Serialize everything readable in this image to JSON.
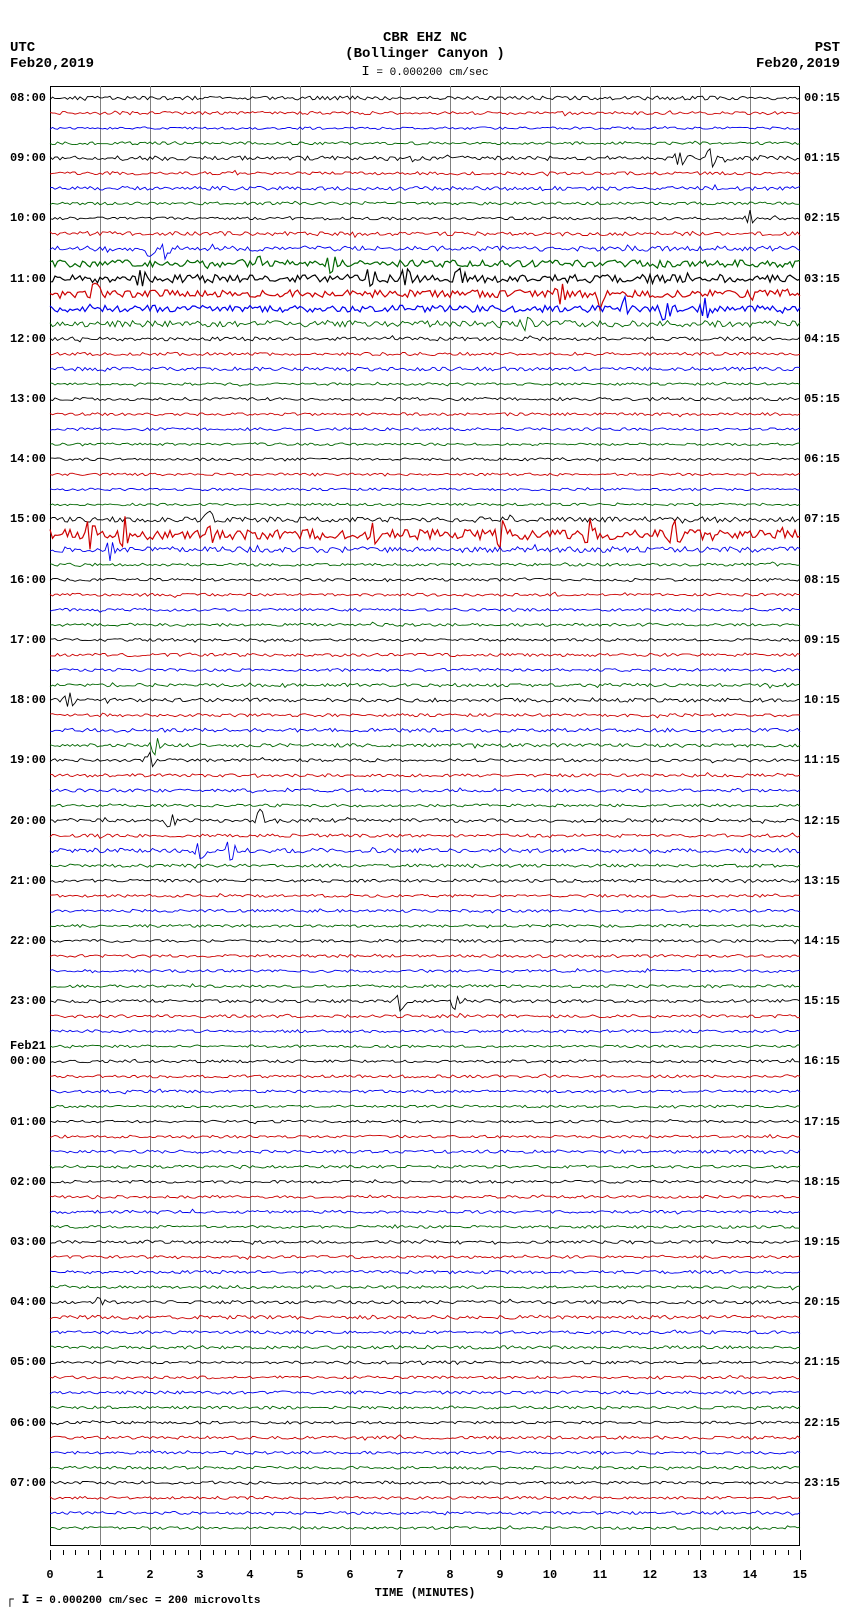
{
  "header": {
    "station": "CBR EHZ NC",
    "location": "(Bollinger Canyon )",
    "scale_text": "= 0.000200 cm/sec",
    "tz_left": "UTC",
    "date_left": "Feb20,2019",
    "tz_right": "PST",
    "date_right": "Feb20,2019"
  },
  "footer": {
    "scale_text": "= 0.000200 cm/sec =    200 microvolts"
  },
  "plot": {
    "x_minutes": [
      0,
      1,
      2,
      3,
      4,
      5,
      6,
      7,
      8,
      9,
      10,
      11,
      12,
      13,
      14,
      15
    ],
    "x_minor_per_step": 4,
    "x_title": "TIME (MINUTES)",
    "trace_colors": [
      "#000000",
      "#cc0000",
      "#0000ee",
      "#006600"
    ],
    "grid_color": "#808080",
    "background": "#ffffff",
    "n_traces": 96,
    "n_hours": 24,
    "utc_start_hour": 8,
    "pst_start_hour": 0,
    "pst_start_min": 15,
    "utc_midnight_label": "Feb21",
    "left_labels": [
      {
        "i": 0,
        "t": "08:00"
      },
      {
        "i": 4,
        "t": "09:00"
      },
      {
        "i": 8,
        "t": "10:00"
      },
      {
        "i": 12,
        "t": "11:00"
      },
      {
        "i": 16,
        "t": "12:00"
      },
      {
        "i": 20,
        "t": "13:00"
      },
      {
        "i": 24,
        "t": "14:00"
      },
      {
        "i": 28,
        "t": "15:00"
      },
      {
        "i": 32,
        "t": "16:00"
      },
      {
        "i": 36,
        "t": "17:00"
      },
      {
        "i": 40,
        "t": "18:00"
      },
      {
        "i": 44,
        "t": "19:00"
      },
      {
        "i": 48,
        "t": "20:00"
      },
      {
        "i": 52,
        "t": "21:00"
      },
      {
        "i": 56,
        "t": "22:00"
      },
      {
        "i": 60,
        "t": "23:00"
      },
      {
        "i": 64,
        "t": "00:00"
      },
      {
        "i": 68,
        "t": "01:00"
      },
      {
        "i": 72,
        "t": "02:00"
      },
      {
        "i": 76,
        "t": "03:00"
      },
      {
        "i": 80,
        "t": "04:00"
      },
      {
        "i": 84,
        "t": "05:00"
      },
      {
        "i": 88,
        "t": "06:00"
      },
      {
        "i": 92,
        "t": "07:00"
      }
    ],
    "right_labels": [
      {
        "i": 0,
        "t": "00:15"
      },
      {
        "i": 4,
        "t": "01:15"
      },
      {
        "i": 8,
        "t": "02:15"
      },
      {
        "i": 12,
        "t": "03:15"
      },
      {
        "i": 16,
        "t": "04:15"
      },
      {
        "i": 20,
        "t": "05:15"
      },
      {
        "i": 24,
        "t": "06:15"
      },
      {
        "i": 28,
        "t": "07:15"
      },
      {
        "i": 32,
        "t": "08:15"
      },
      {
        "i": 36,
        "t": "09:15"
      },
      {
        "i": 40,
        "t": "10:15"
      },
      {
        "i": 44,
        "t": "11:15"
      },
      {
        "i": 48,
        "t": "12:15"
      },
      {
        "i": 52,
        "t": "13:15"
      },
      {
        "i": 56,
        "t": "14:15"
      },
      {
        "i": 60,
        "t": "15:15"
      },
      {
        "i": 64,
        "t": "16:15"
      },
      {
        "i": 68,
        "t": "17:15"
      },
      {
        "i": 72,
        "t": "18:15"
      },
      {
        "i": 76,
        "t": "19:15"
      },
      {
        "i": 80,
        "t": "20:15"
      },
      {
        "i": 84,
        "t": "21:15"
      },
      {
        "i": 88,
        "t": "22:15"
      },
      {
        "i": 92,
        "t": "23:15"
      }
    ],
    "amplitude_profile": [
      1.2,
      1.0,
      0.8,
      0.9,
      1.4,
      1.0,
      1.2,
      0.9,
      0.9,
      1.3,
      1.6,
      2.2,
      2.6,
      2.4,
      2.2,
      2.0,
      1.2,
      1.0,
      1.2,
      0.8,
      1.0,
      0.9,
      0.9,
      0.8,
      0.8,
      0.8,
      0.8,
      0.8,
      1.6,
      3.2,
      1.8,
      0.9,
      0.9,
      0.9,
      0.9,
      0.9,
      0.9,
      1.0,
      0.9,
      1.1,
      1.2,
      1.0,
      1.2,
      1.1,
      1.0,
      1.0,
      1.0,
      0.9,
      1.2,
      1.0,
      1.4,
      1.0,
      1.0,
      0.9,
      0.9,
      0.9,
      0.9,
      0.9,
      0.9,
      0.9,
      1.0,
      1.0,
      0.9,
      0.8,
      0.9,
      0.9,
      0.9,
      0.8,
      0.8,
      0.9,
      1.0,
      0.9,
      0.9,
      0.9,
      0.9,
      0.9,
      0.9,
      0.9,
      1.0,
      0.9,
      1.0,
      1.2,
      1.0,
      1.0,
      0.9,
      0.9,
      1.0,
      0.9,
      0.9,
      1.0,
      0.9,
      0.9,
      0.9,
      0.9,
      0.9,
      0.9
    ],
    "spikes": [
      {
        "i": 4,
        "x": 13.2,
        "h": 4
      },
      {
        "i": 4,
        "x": 12.6,
        "h": 3
      },
      {
        "i": 8,
        "x": 14.0,
        "h": 3
      },
      {
        "i": 10,
        "x": 2.0,
        "h": 3
      },
      {
        "i": 10,
        "x": 2.3,
        "h": 4
      },
      {
        "i": 11,
        "x": 4.2,
        "h": 3
      },
      {
        "i": 11,
        "x": 5.6,
        "h": 4
      },
      {
        "i": 12,
        "x": 1.8,
        "h": 5
      },
      {
        "i": 12,
        "x": 6.4,
        "h": 4
      },
      {
        "i": 12,
        "x": 7.1,
        "h": 4
      },
      {
        "i": 12,
        "x": 8.2,
        "h": 3
      },
      {
        "i": 13,
        "x": 0.9,
        "h": 4
      },
      {
        "i": 13,
        "x": 10.2,
        "h": 4
      },
      {
        "i": 13,
        "x": 11.0,
        "h": 5
      },
      {
        "i": 14,
        "x": 11.5,
        "h": 4
      },
      {
        "i": 14,
        "x": 12.3,
        "h": 5
      },
      {
        "i": 14,
        "x": 13.1,
        "h": 4
      },
      {
        "i": 15,
        "x": 9.5,
        "h": 3
      },
      {
        "i": 28,
        "x": 3.2,
        "h": 3
      },
      {
        "i": 29,
        "x": 0.8,
        "h": 5
      },
      {
        "i": 29,
        "x": 1.5,
        "h": 6
      },
      {
        "i": 29,
        "x": 3.2,
        "h": 5
      },
      {
        "i": 29,
        "x": 6.5,
        "h": 4
      },
      {
        "i": 29,
        "x": 9.0,
        "h": 6
      },
      {
        "i": 29,
        "x": 10.8,
        "h": 5
      },
      {
        "i": 29,
        "x": 12.5,
        "h": 5
      },
      {
        "i": 30,
        "x": 1.2,
        "h": 4
      },
      {
        "i": 40,
        "x": 0.4,
        "h": 3
      },
      {
        "i": 43,
        "x": 2.1,
        "h": 4
      },
      {
        "i": 44,
        "x": 2.0,
        "h": 3
      },
      {
        "i": 48,
        "x": 2.4,
        "h": 3
      },
      {
        "i": 48,
        "x": 4.2,
        "h": 4
      },
      {
        "i": 50,
        "x": 3.0,
        "h": 4
      },
      {
        "i": 50,
        "x": 3.6,
        "h": 4
      },
      {
        "i": 60,
        "x": 7.0,
        "h": 4
      },
      {
        "i": 60,
        "x": 8.1,
        "h": 3
      },
      {
        "i": 80,
        "x": 1.0,
        "h": 2
      }
    ]
  }
}
